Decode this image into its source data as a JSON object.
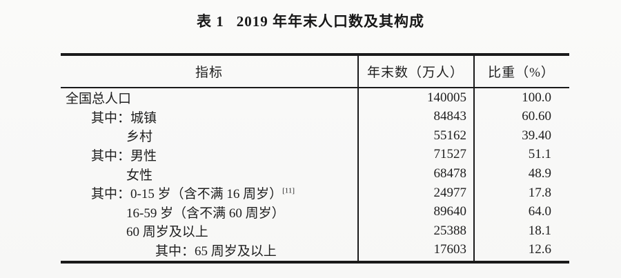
{
  "title": {
    "prefix": "表 1",
    "text": "2019 年年末人口数及其构成"
  },
  "table": {
    "headers": {
      "indicator": "指标",
      "year_end": "年末数（万人）",
      "share": "比重（%）"
    },
    "rows": [
      {
        "indicator": "全国总人口",
        "footnote": "",
        "year_end": "140005",
        "share": "100.0"
      },
      {
        "indicator": "其中：城镇",
        "footnote": "",
        "year_end": "84843",
        "share": "60.60"
      },
      {
        "indicator": "乡村",
        "footnote": "",
        "year_end": "55162",
        "share": "39.40"
      },
      {
        "indicator": "其中：男性",
        "footnote": "",
        "year_end": "71527",
        "share": "51.1"
      },
      {
        "indicator": "女性",
        "footnote": "",
        "year_end": "68478",
        "share": "48.9"
      },
      {
        "indicator": "其中：0-15 岁（含不满 16 周岁）",
        "footnote": "[11]",
        "year_end": "24977",
        "share": "17.8"
      },
      {
        "indicator": "16-59 岁（含不满 60 周岁）",
        "footnote": "",
        "year_end": "89640",
        "share": "64.0"
      },
      {
        "indicator": "60 周岁及以上",
        "footnote": "",
        "year_end": "25388",
        "share": "18.1"
      },
      {
        "indicator": "其中：65 周岁及以上",
        "footnote": "",
        "year_end": "17603",
        "share": "12.6"
      }
    ]
  },
  "colors": {
    "text": "#1e1e1e",
    "border": "#1a1a1a",
    "background": "#f9f9f8"
  }
}
